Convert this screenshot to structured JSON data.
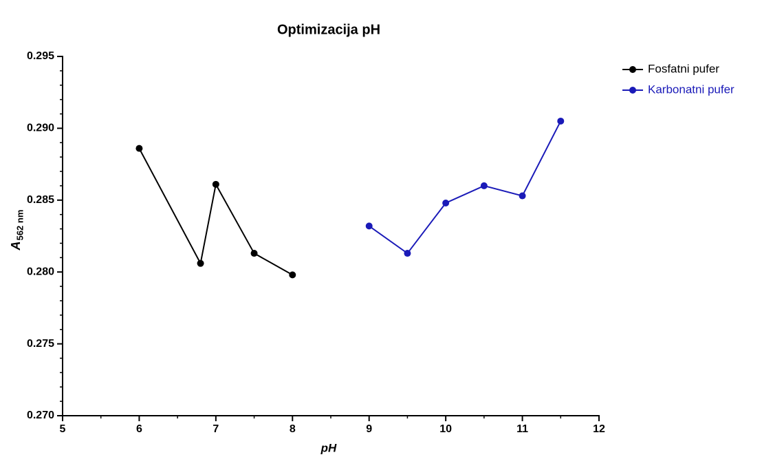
{
  "chart_data": {
    "type": "line",
    "title": "Optimizacija pH",
    "x_label": "pH",
    "y_label": "A",
    "y_label_subscript": "562 nm",
    "series": [
      {
        "name": "Fosfatni pufer",
        "color": "#000000",
        "x": [
          6,
          6.8,
          7,
          7.5,
          8
        ],
        "values": [
          0.2886,
          0.2806,
          0.2861,
          0.2813,
          0.2798
        ]
      },
      {
        "name": "Karbonatni pufer",
        "color": "#1a1ab8",
        "x": [
          9,
          9.5,
          10,
          10.5,
          11,
          11.5
        ],
        "values": [
          0.2832,
          0.2813,
          0.2848,
          0.286,
          0.2853,
          0.2905
        ]
      }
    ],
    "xlim": [
      5,
      12
    ],
    "xticks": [
      5,
      6,
      7,
      8,
      9,
      10,
      11,
      12
    ],
    "xminorticks": [
      5.5,
      6.5,
      7.5,
      8.5,
      9.5,
      10.5,
      11.5
    ],
    "ylim": [
      0.27,
      0.295
    ],
    "yticks": [
      {
        "value": 0.27,
        "label": "0.270"
      },
      0.275,
      {
        "value": 0.28,
        "label": "0.280"
      },
      0.285,
      {
        "value": 0.29,
        "label": "0.290"
      },
      0.295
    ],
    "yminorticks": [
      0.271,
      0.272,
      0.273,
      0.274,
      0.276,
      0.277,
      0.278,
      0.279,
      0.281,
      0.282,
      0.283,
      0.284,
      0.286,
      0.287,
      0.288,
      0.289,
      0.291,
      0.292,
      0.293,
      0.294
    ],
    "grid": false,
    "legend": "right"
  }
}
